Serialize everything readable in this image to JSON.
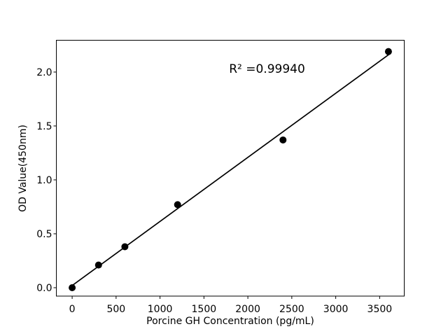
{
  "figure": {
    "background": "#ffffff"
  },
  "chart_data": {
    "type": "scatter",
    "title": "",
    "xlabel": "Porcine GH Concentration (pg/mL)",
    "ylabel": "OD Value(450nm)",
    "annotation": "R² =0.99940",
    "series": [
      {
        "name": "standard-points",
        "x": [
          0,
          300,
          600,
          1200,
          2400,
          3600
        ],
        "y": [
          0.0,
          0.21,
          0.38,
          0.77,
          1.37,
          2.19
        ]
      }
    ],
    "fit_line": {
      "x": [
        0,
        3600
      ],
      "y": [
        0.02,
        2.16
      ]
    },
    "xticks": {
      "values": [
        0,
        500,
        1000,
        1500,
        2000,
        2500,
        3000,
        3500
      ],
      "labels": [
        "0",
        "500",
        "1000",
        "1500",
        "2000",
        "2500",
        "3000",
        "3500"
      ]
    },
    "yticks": {
      "values": [
        0.0,
        0.5,
        1.0,
        1.5,
        2.0
      ],
      "labels": [
        "0.0",
        "0.5",
        "1.0",
        "1.5",
        "2.0"
      ]
    },
    "xlim": [
      -180,
      3780
    ],
    "ylim": [
      -0.078,
      2.295
    ],
    "grid": false,
    "legend": null,
    "colors": {
      "marker": "#000000",
      "line": "#000000",
      "spine": "#000000",
      "text": "#000000",
      "background": "#ffffff"
    }
  }
}
